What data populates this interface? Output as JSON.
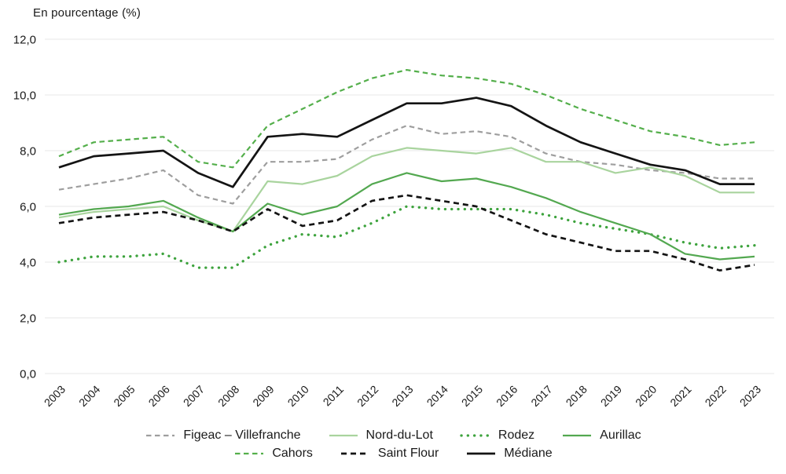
{
  "chart_data": {
    "type": "line",
    "title": "En pourcentage (%)",
    "x_labels": [
      "2003",
      "2004",
      "2005",
      "2006",
      "2007",
      "2008",
      "2009",
      "2010",
      "2011",
      "2012",
      "2013",
      "2014",
      "2015",
      "2016",
      "2017",
      "2018",
      "2019",
      "2020",
      "2021",
      "2022",
      "2023"
    ],
    "y_ticks": [
      "0,0",
      "2,0",
      "4,0",
      "6,0",
      "8,0",
      "10,0",
      "12,0"
    ],
    "ylim": [
      0,
      12
    ],
    "ytick_step": 2,
    "grid": true,
    "legend_position": "bottom",
    "axis_text_color": "#1a1a1a",
    "grid_color": "#e7e7e7",
    "series": [
      {
        "name": "Figeac – Villefranche",
        "color": "#9e9e9e",
        "style": "dashed",
        "values": [
          6.6,
          6.8,
          7.0,
          7.3,
          6.4,
          6.1,
          7.6,
          7.6,
          7.7,
          8.4,
          8.9,
          8.6,
          8.7,
          8.5,
          7.9,
          7.6,
          7.5,
          7.3,
          7.2,
          7.0,
          7.0
        ]
      },
      {
        "name": "Nord-du-Lot",
        "color": "#a9d49e",
        "style": "solid",
        "values": [
          5.6,
          5.8,
          5.9,
          6.0,
          5.5,
          5.1,
          6.9,
          6.8,
          7.1,
          7.8,
          8.1,
          8.0,
          7.9,
          8.1,
          7.6,
          7.6,
          7.2,
          7.4,
          7.1,
          6.5,
          6.5
        ]
      },
      {
        "name": "Rodez",
        "color": "#3da33d",
        "style": "dotted",
        "values": [
          4.0,
          4.2,
          4.2,
          4.3,
          3.8,
          3.8,
          4.6,
          5.0,
          4.9,
          5.4,
          6.0,
          5.9,
          5.9,
          5.9,
          5.7,
          5.4,
          5.2,
          5.0,
          4.7,
          4.5,
          4.6
        ]
      },
      {
        "name": "Aurillac",
        "color": "#53a850",
        "style": "solid",
        "values": [
          5.7,
          5.9,
          6.0,
          6.2,
          5.6,
          5.1,
          6.1,
          5.7,
          6.0,
          6.8,
          7.2,
          6.9,
          7.0,
          6.7,
          6.3,
          5.8,
          5.4,
          5.0,
          4.3,
          4.1,
          4.2
        ]
      },
      {
        "name": "Cahors",
        "color": "#54af4b",
        "style": "dashed",
        "values": [
          7.8,
          8.3,
          8.4,
          8.5,
          7.6,
          7.4,
          8.9,
          9.5,
          10.1,
          10.6,
          10.9,
          10.7,
          10.6,
          10.4,
          10.0,
          9.5,
          9.1,
          8.7,
          8.5,
          8.2,
          8.3
        ]
      },
      {
        "name": "Saint Flour",
        "color": "#141414",
        "style": "dashed",
        "values": [
          5.4,
          5.6,
          5.7,
          5.8,
          5.5,
          5.1,
          5.9,
          5.3,
          5.5,
          6.2,
          6.4,
          6.2,
          6.0,
          5.5,
          5.0,
          4.7,
          4.4,
          4.4,
          4.1,
          3.7,
          3.9
        ]
      },
      {
        "name": "Médiane",
        "color": "#141414",
        "style": "solid",
        "values": [
          7.4,
          7.8,
          7.9,
          8.0,
          7.2,
          6.7,
          8.5,
          8.6,
          8.5,
          9.1,
          9.7,
          9.7,
          9.9,
          9.6,
          8.9,
          8.3,
          7.9,
          7.5,
          7.3,
          6.8,
          6.8
        ]
      }
    ],
    "legend_rows": [
      [
        "Figeac – Villefranche",
        "Nord-du-Lot",
        "Rodez",
        "Aurillac"
      ],
      [
        "Cahors",
        "Saint Flour",
        "Médiane"
      ]
    ]
  }
}
